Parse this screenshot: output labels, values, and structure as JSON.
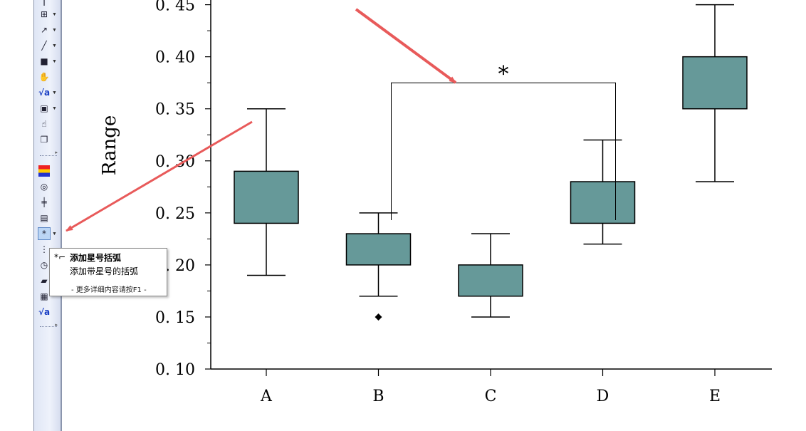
{
  "toolbar": {
    "items": [
      {
        "icon": "text-tool-icon",
        "glyph": "T",
        "dropdown": false
      },
      {
        "icon": "layer-tool-icon",
        "glyph": "⊞",
        "dropdown": true
      },
      {
        "icon": "arrow-tool-icon",
        "glyph": "↗",
        "dropdown": true
      },
      {
        "icon": "line-tool-icon",
        "glyph": "╱",
        "dropdown": true
      },
      {
        "icon": "rectangle-tool-icon",
        "glyph": "■",
        "dropdown": true
      },
      {
        "icon": "hand-tool-icon",
        "glyph": "✋",
        "dropdown": false
      },
      {
        "icon": "equation-tool-icon",
        "glyph": "√a",
        "dropdown": true
      },
      {
        "icon": "graph-object-icon",
        "glyph": "▣",
        "dropdown": true
      },
      {
        "icon": "pan-tool-icon",
        "glyph": "☝",
        "dropdown": false
      },
      {
        "icon": "layer-copy-icon",
        "glyph": "❐",
        "dropdown": false
      },
      {
        "icon": "color-scale-icon",
        "glyph": "≡",
        "dropdown": false
      },
      {
        "icon": "spiral-icon",
        "glyph": "◎",
        "dropdown": false
      },
      {
        "icon": "axis-break-icon",
        "glyph": "╪",
        "dropdown": false
      },
      {
        "icon": "table-object-icon",
        "glyph": "▤",
        "dropdown": false
      },
      {
        "icon": "star-bracket-icon",
        "glyph": "*",
        "dropdown": true
      },
      {
        "icon": "row-tool-icon",
        "glyph": "⋮",
        "dropdown": false
      },
      {
        "icon": "clock-tool-icon",
        "glyph": "◷",
        "dropdown": false
      },
      {
        "icon": "folder-tool-icon",
        "glyph": "▰",
        "dropdown": false
      },
      {
        "icon": "grid-tool-icon",
        "glyph": "▦",
        "dropdown": false
      },
      {
        "icon": "equation-insert-icon",
        "glyph": "√a",
        "dropdown": false
      }
    ]
  },
  "tooltip": {
    "title": "添加星号括弧",
    "description": "添加带星号的括弧",
    "help": "- 更多详细内容请按F1 -",
    "icon": "star-bracket-icon"
  },
  "annotation": {
    "bracket_label": "*",
    "arrow_color": "#e85a5a"
  },
  "chart_data": {
    "type": "box",
    "categories": [
      "A",
      "B",
      "C",
      "D",
      "E"
    ],
    "ylabel": "Range",
    "yticks": [
      "0.10",
      "0.15",
      "0.20",
      "0.25",
      "0.30",
      "0.35",
      "0.40",
      "0.45"
    ],
    "ylim": [
      0.1,
      0.46
    ],
    "box_color": "#669999",
    "boxes": [
      {
        "category": "A",
        "whisker_low": 0.19,
        "q1": 0.24,
        "q3": 0.29,
        "whisker_high": 0.35,
        "outliers": []
      },
      {
        "category": "B",
        "whisker_low": 0.17,
        "q1": 0.2,
        "q3": 0.23,
        "whisker_high": 0.25,
        "outliers": [
          0.15
        ]
      },
      {
        "category": "C",
        "whisker_low": 0.15,
        "q1": 0.17,
        "q3": 0.2,
        "whisker_high": 0.23,
        "outliers": []
      },
      {
        "category": "D",
        "whisker_low": 0.22,
        "q1": 0.24,
        "q3": 0.28,
        "whisker_high": 0.32,
        "outliers": []
      },
      {
        "category": "E",
        "whisker_low": 0.28,
        "q1": 0.35,
        "q3": 0.4,
        "whisker_high": 0.45,
        "outliers": []
      }
    ],
    "significance": {
      "from": "B",
      "to": "D",
      "level": 0.375,
      "label": "*"
    }
  }
}
